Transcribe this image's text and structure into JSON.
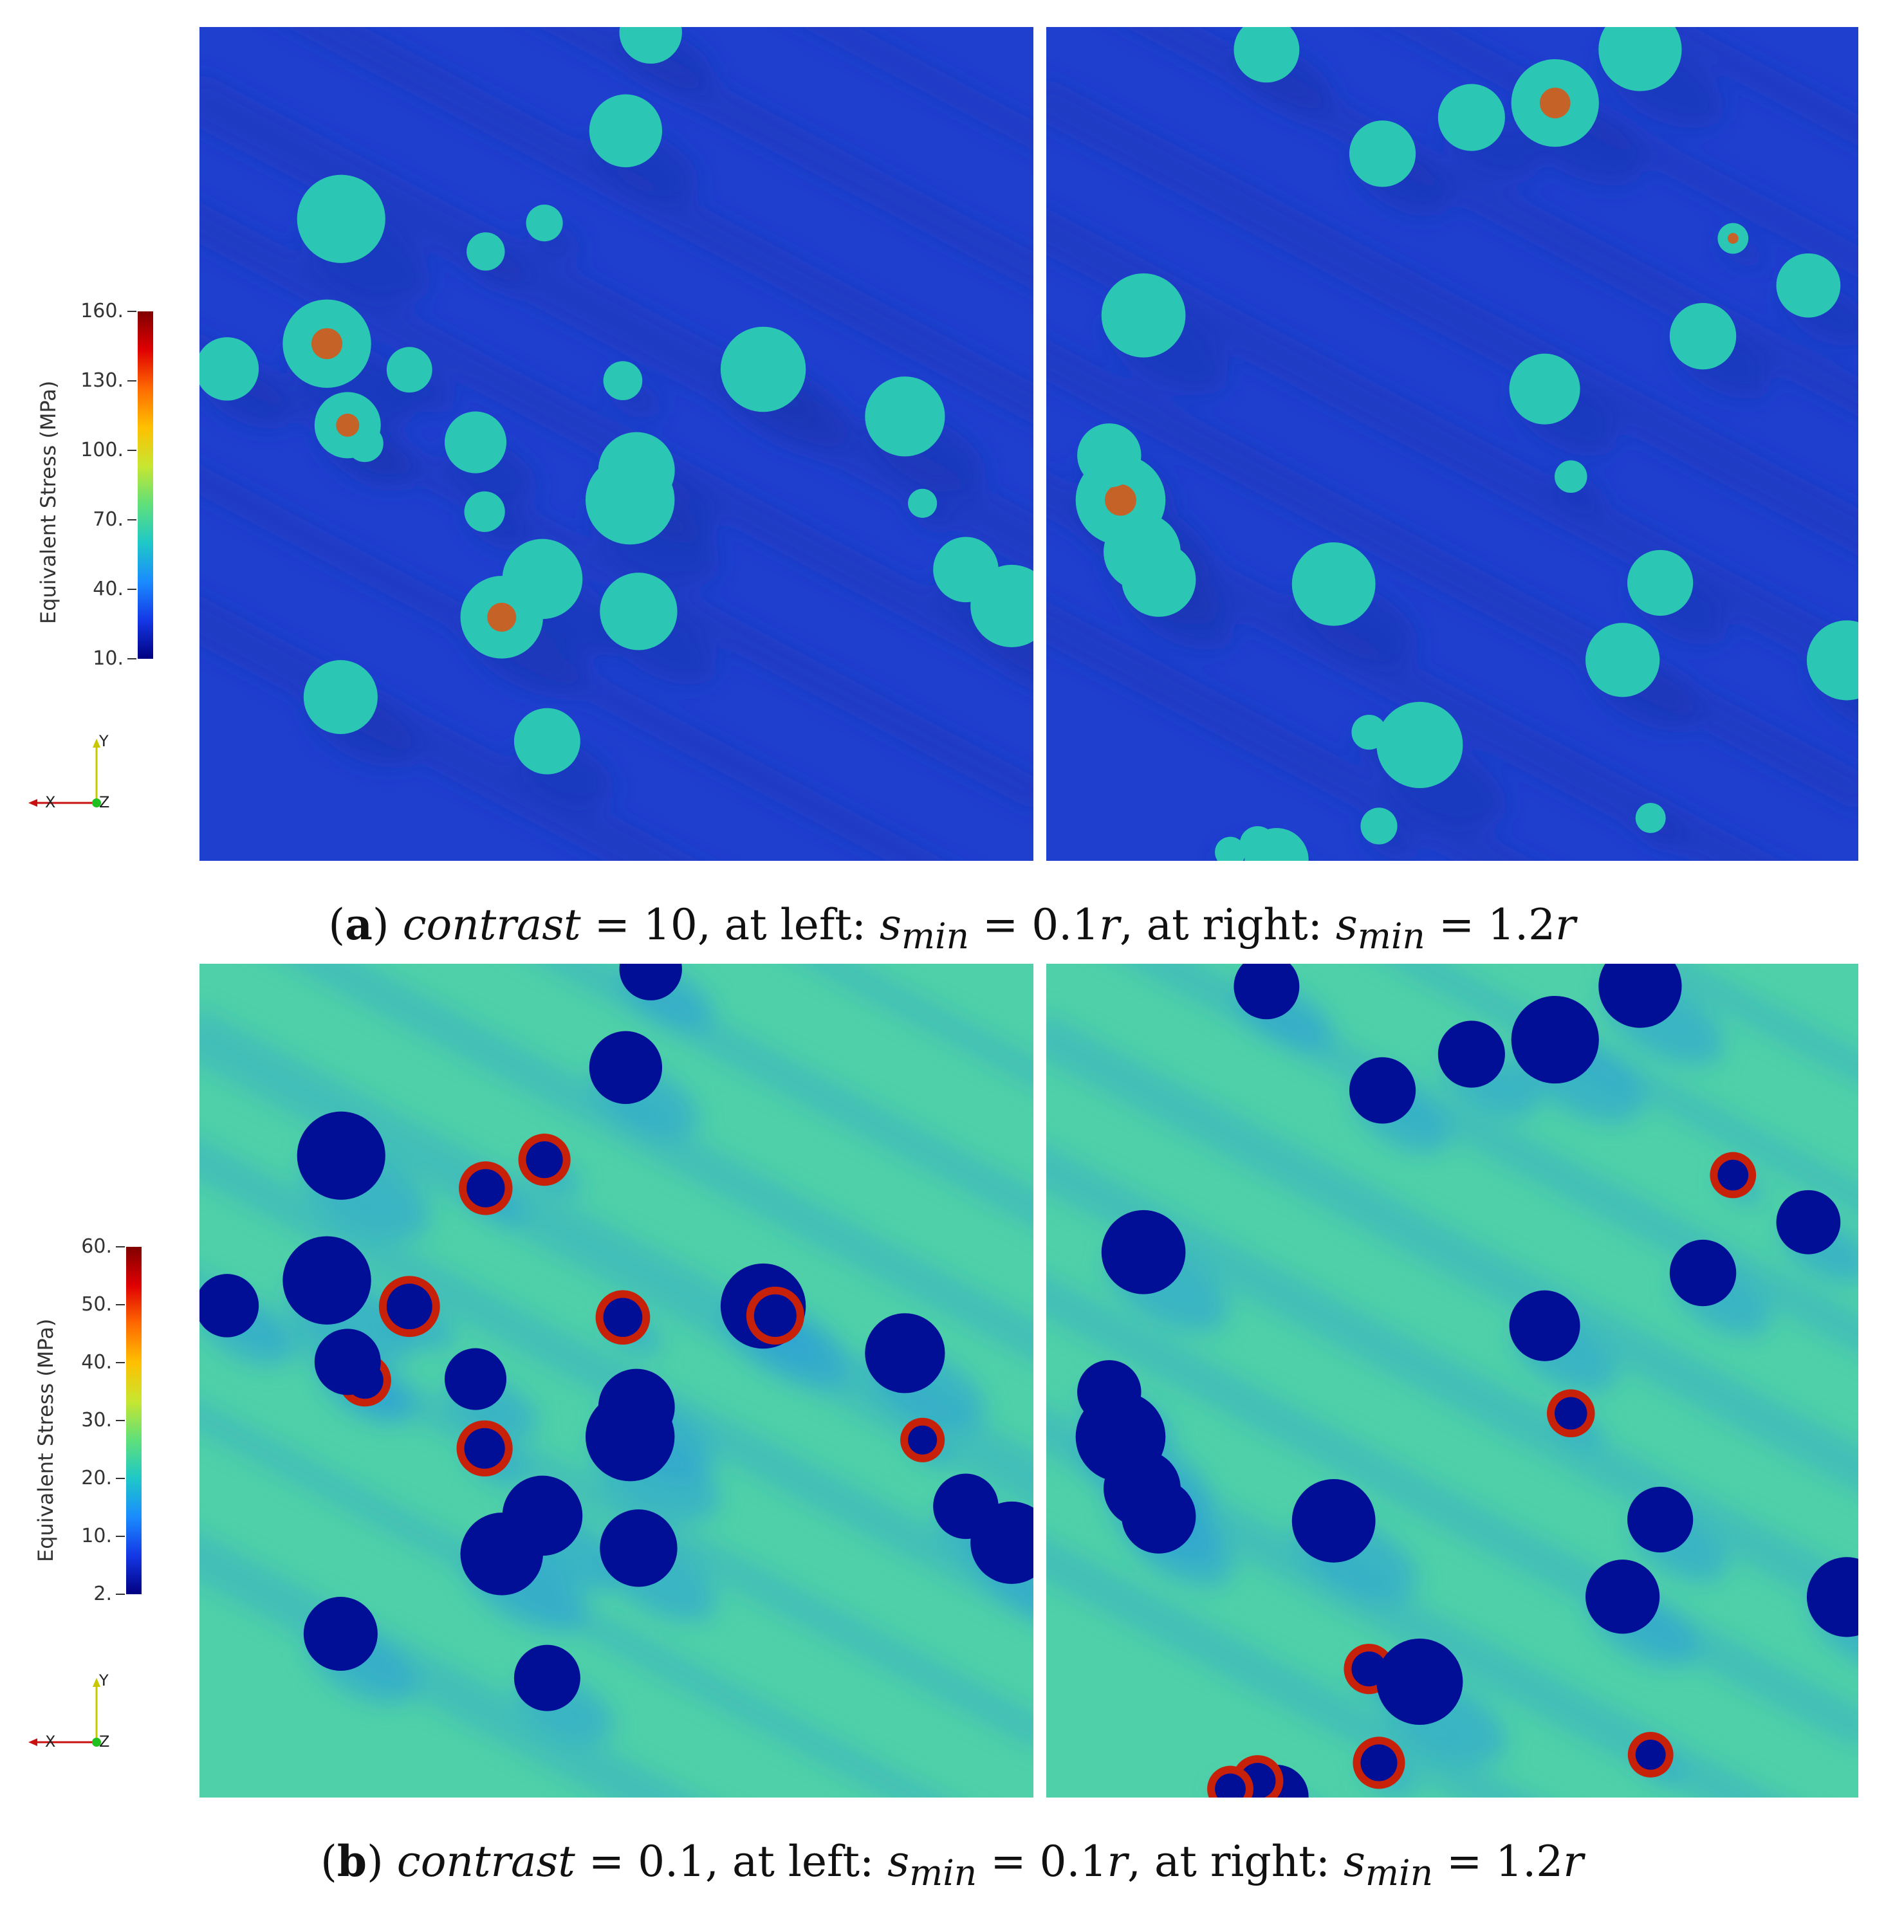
{
  "figure": {
    "panel_a": {
      "colorbar": {
        "title": "Equivalent Stress (MPa)",
        "ticks": [
          "160.",
          "130.",
          "100.",
          "70.",
          "40.",
          "10."
        ],
        "range": [
          10,
          160
        ]
      },
      "caption": {
        "letter": "a",
        "var": "contrast",
        "eq_value": " = 10, at left: ",
        "s": "s",
        "sub": "min",
        "left_val": " = 0.1",
        "r1": "r",
        "mid": ", at right: ",
        "right_val": " = 1.2",
        "r2": "r"
      }
    },
    "panel_b": {
      "colorbar": {
        "title": "Equivalent Stress (MPa)",
        "ticks": [
          "60.",
          "50.",
          "40.",
          "30.",
          "20.",
          "10.",
          "2."
        ],
        "range": [
          2,
          60
        ]
      },
      "caption": {
        "letter": "b",
        "var": "contrast",
        "eq_value": " = 0.1, at left: ",
        "s": "s",
        "sub": "min",
        "left_val": " = 0.1",
        "r1": "r",
        "mid": ", at right: ",
        "right_val": " = 1.2",
        "r2": "r"
      }
    },
    "axes_triad": {
      "x": "X",
      "y": "Y",
      "z": "Z"
    },
    "colors": {
      "a_background": "#1f3fcf",
      "a_inclusion": "#2bc6b4",
      "a_hot": "#e0500f",
      "b_background": "#4fd0a8",
      "b_inclusion": "#000f96",
      "b_hot": "#c8210a"
    }
  }
}
